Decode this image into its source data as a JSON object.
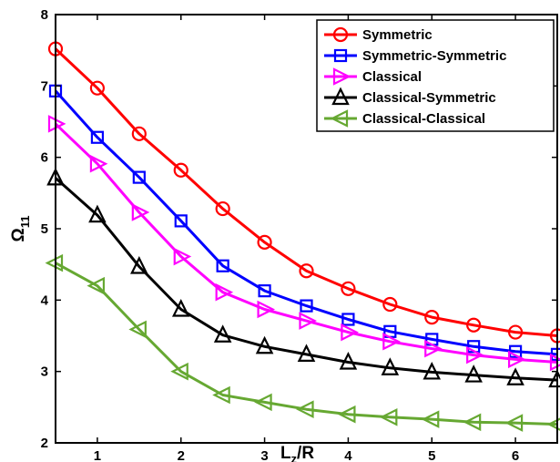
{
  "chart_data": {
    "type": "line",
    "xlabel": {
      "main": "L",
      "sub": "z",
      "rest": "/R"
    },
    "ylabel": {
      "main": "Ω",
      "sub": "11"
    },
    "xlim": [
      0.5,
      6.5
    ],
    "ylim": [
      2,
      8
    ],
    "xticks": [
      1,
      2,
      3,
      4,
      5,
      6
    ],
    "yticks": [
      2,
      3,
      4,
      5,
      6,
      7,
      8
    ],
    "grid": false,
    "legend_position": "top-right",
    "x": [
      0.5,
      1.0,
      1.5,
      2.0,
      2.5,
      3.0,
      3.5,
      4.0,
      4.5,
      5.0,
      5.5,
      6.0,
      6.5
    ],
    "series": [
      {
        "name": "Symmetric",
        "color": "#ff0000",
        "marker": "circle",
        "values": [
          7.52,
          6.97,
          6.33,
          5.82,
          5.28,
          4.81,
          4.41,
          4.16,
          3.94,
          3.76,
          3.65,
          3.55,
          3.5
        ]
      },
      {
        "name": "Symmetric-Symmetric",
        "color": "#0000ff",
        "marker": "square",
        "values": [
          6.93,
          6.28,
          5.72,
          5.11,
          4.48,
          4.13,
          3.92,
          3.73,
          3.56,
          3.45,
          3.35,
          3.28,
          3.24
        ]
      },
      {
        "name": "Classical",
        "color": "#ff00ff",
        "marker": "triangle-right",
        "values": [
          6.47,
          5.91,
          5.23,
          4.61,
          4.11,
          3.87,
          3.71,
          3.55,
          3.42,
          3.32,
          3.23,
          3.17,
          3.13
        ]
      },
      {
        "name": "Classical-Symmetric",
        "color": "#000000",
        "marker": "triangle-up",
        "values": [
          5.71,
          5.19,
          4.47,
          3.87,
          3.51,
          3.35,
          3.24,
          3.13,
          3.05,
          2.99,
          2.95,
          2.91,
          2.88
        ]
      },
      {
        "name": "Classical-Classical",
        "color": "#66a832",
        "marker": "triangle-left",
        "values": [
          4.52,
          4.2,
          3.59,
          3.0,
          2.67,
          2.57,
          2.47,
          2.4,
          2.36,
          2.33,
          2.29,
          2.28,
          2.26
        ]
      }
    ]
  }
}
